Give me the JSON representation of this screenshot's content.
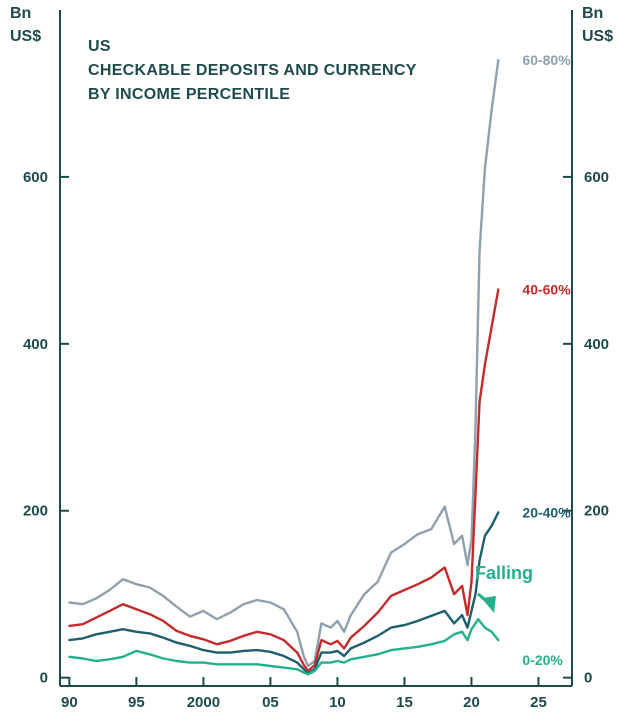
{
  "chart_data": {
    "type": "line",
    "title_lines": [
      "US",
      "CHECKABLE DEPOSITS AND CURRENCY",
      "BY INCOME PERCENTILE"
    ],
    "y_unit_lines": [
      "Bn",
      "US$"
    ],
    "ylim": [
      -10,
      800
    ],
    "xlim": [
      1989.3,
      2027.5
    ],
    "y_ticks": [
      0,
      200,
      400,
      600
    ],
    "y_tick_labels": [
      "0",
      "200",
      "400",
      "600"
    ],
    "x_ticks": [
      1990,
      1995,
      2000,
      2005,
      2010,
      2015,
      2020,
      2025
    ],
    "x_tick_labels": [
      "90",
      "95",
      "2000",
      "05",
      "10",
      "15",
      "20",
      "25"
    ],
    "annotation": {
      "text": "Falling",
      "color": "#25b08c"
    },
    "series": [
      {
        "name": "60-80%",
        "color": "#8fa1ae",
        "points": [
          [
            1990,
            90
          ],
          [
            1991,
            88
          ],
          [
            1992,
            95
          ],
          [
            1993,
            105
          ],
          [
            1994,
            118
          ],
          [
            1995,
            112
          ],
          [
            1996,
            108
          ],
          [
            1997,
            98
          ],
          [
            1998,
            85
          ],
          [
            1999,
            73
          ],
          [
            2000,
            80
          ],
          [
            2001,
            70
          ],
          [
            2002,
            78
          ],
          [
            2003,
            88
          ],
          [
            2004,
            93
          ],
          [
            2005,
            90
          ],
          [
            2006,
            82
          ],
          [
            2007,
            55
          ],
          [
            2007.5,
            25
          ],
          [
            2007.8,
            14
          ],
          [
            2008.3,
            20
          ],
          [
            2008.8,
            65
          ],
          [
            2009.5,
            60
          ],
          [
            2010,
            68
          ],
          [
            2010.5,
            55
          ],
          [
            2011,
            75
          ],
          [
            2012,
            100
          ],
          [
            2013,
            115
          ],
          [
            2014,
            150
          ],
          [
            2015,
            160
          ],
          [
            2016,
            172
          ],
          [
            2017,
            178
          ],
          [
            2018,
            205
          ],
          [
            2018.7,
            160
          ],
          [
            2019.3,
            170
          ],
          [
            2019.7,
            135
          ],
          [
            2020,
            165
          ],
          [
            2020.3,
            300
          ],
          [
            2020.6,
            510
          ],
          [
            2021,
            610
          ],
          [
            2021.5,
            680
          ],
          [
            2022,
            740
          ]
        ]
      },
      {
        "name": "40-60%",
        "color": "#c42b2b",
        "points": [
          [
            1990,
            62
          ],
          [
            1991,
            64
          ],
          [
            1992,
            72
          ],
          [
            1993,
            80
          ],
          [
            1994,
            88
          ],
          [
            1995,
            82
          ],
          [
            1996,
            76
          ],
          [
            1997,
            68
          ],
          [
            1998,
            56
          ],
          [
            1999,
            50
          ],
          [
            2000,
            46
          ],
          [
            2001,
            40
          ],
          [
            2002,
            44
          ],
          [
            2003,
            50
          ],
          [
            2004,
            55
          ],
          [
            2005,
            52
          ],
          [
            2006,
            45
          ],
          [
            2007,
            30
          ],
          [
            2007.5,
            15
          ],
          [
            2007.8,
            8
          ],
          [
            2008.3,
            15
          ],
          [
            2008.8,
            45
          ],
          [
            2009.5,
            40
          ],
          [
            2010,
            44
          ],
          [
            2010.5,
            35
          ],
          [
            2011,
            48
          ],
          [
            2012,
            62
          ],
          [
            2013,
            78
          ],
          [
            2014,
            98
          ],
          [
            2015,
            105
          ],
          [
            2016,
            112
          ],
          [
            2017,
            120
          ],
          [
            2018,
            132
          ],
          [
            2018.7,
            100
          ],
          [
            2019.3,
            110
          ],
          [
            2019.7,
            75
          ],
          [
            2020,
            115
          ],
          [
            2020.3,
            220
          ],
          [
            2020.6,
            330
          ],
          [
            2021,
            375
          ],
          [
            2021.5,
            420
          ],
          [
            2022,
            465
          ]
        ]
      },
      {
        "name": "20-40%",
        "color": "#1d5f6f",
        "points": [
          [
            1990,
            45
          ],
          [
            1991,
            47
          ],
          [
            1992,
            52
          ],
          [
            1993,
            55
          ],
          [
            1994,
            58
          ],
          [
            1995,
            55
          ],
          [
            1996,
            53
          ],
          [
            1997,
            48
          ],
          [
            1998,
            42
          ],
          [
            1999,
            38
          ],
          [
            2000,
            33
          ],
          [
            2001,
            30
          ],
          [
            2002,
            30
          ],
          [
            2003,
            32
          ],
          [
            2004,
            33
          ],
          [
            2005,
            31
          ],
          [
            2006,
            26
          ],
          [
            2007,
            18
          ],
          [
            2007.5,
            10
          ],
          [
            2007.8,
            5
          ],
          [
            2008.3,
            10
          ],
          [
            2008.8,
            30
          ],
          [
            2009.5,
            30
          ],
          [
            2010,
            32
          ],
          [
            2010.5,
            26
          ],
          [
            2011,
            35
          ],
          [
            2012,
            42
          ],
          [
            2013,
            50
          ],
          [
            2014,
            60
          ],
          [
            2015,
            63
          ],
          [
            2016,
            68
          ],
          [
            2017,
            74
          ],
          [
            2018,
            80
          ],
          [
            2018.7,
            65
          ],
          [
            2019.3,
            75
          ],
          [
            2019.7,
            60
          ],
          [
            2020,
            80
          ],
          [
            2020.3,
            100
          ],
          [
            2020.6,
            140
          ],
          [
            2021,
            170
          ],
          [
            2021.5,
            182
          ],
          [
            2022,
            198
          ]
        ]
      },
      {
        "name": "0-20%",
        "color": "#25b08c",
        "points": [
          [
            1990,
            25
          ],
          [
            1991,
            23
          ],
          [
            1992,
            20
          ],
          [
            1993,
            22
          ],
          [
            1994,
            25
          ],
          [
            1995,
            32
          ],
          [
            1996,
            28
          ],
          [
            1997,
            23
          ],
          [
            1998,
            20
          ],
          [
            1999,
            18
          ],
          [
            2000,
            18
          ],
          [
            2001,
            16
          ],
          [
            2002,
            16
          ],
          [
            2003,
            16
          ],
          [
            2004,
            16
          ],
          [
            2005,
            14
          ],
          [
            2006,
            12
          ],
          [
            2007,
            10
          ],
          [
            2007.5,
            6
          ],
          [
            2007.8,
            4
          ],
          [
            2008.3,
            8
          ],
          [
            2008.8,
            18
          ],
          [
            2009.5,
            18
          ],
          [
            2010,
            20
          ],
          [
            2010.5,
            18
          ],
          [
            2011,
            22
          ],
          [
            2012,
            25
          ],
          [
            2013,
            28
          ],
          [
            2014,
            33
          ],
          [
            2015,
            35
          ],
          [
            2016,
            37
          ],
          [
            2017,
            40
          ],
          [
            2018,
            44
          ],
          [
            2018.7,
            52
          ],
          [
            2019.3,
            55
          ],
          [
            2019.7,
            45
          ],
          [
            2020,
            58
          ],
          [
            2020.5,
            70
          ],
          [
            2021,
            60
          ],
          [
            2021.5,
            55
          ],
          [
            2022,
            45
          ]
        ]
      }
    ]
  }
}
